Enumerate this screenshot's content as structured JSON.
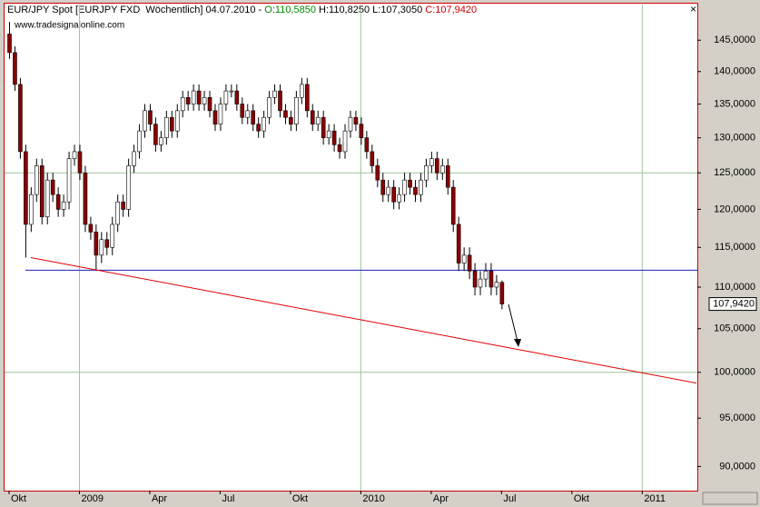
{
  "chart_data": {
    "type": "candlestick",
    "header": {
      "instrument": "EUR/JPY Spot [EURJPY FXD  Wöchentlich] 04.07.2010 - ",
      "open": "O:110,5850",
      "mid": " H:110,8250 L:107,3050 ",
      "close": "C:107,9420"
    },
    "source": "www.tradesignalonline.com",
    "categories": [
      "Okt",
      null,
      null,
      null,
      null,
      null,
      null,
      null,
      null,
      null,
      null,
      null,
      null,
      "2009",
      null,
      null,
      null,
      null,
      null,
      null,
      null,
      null,
      null,
      null,
      null,
      null,
      "Apr",
      null,
      null,
      null,
      null,
      null,
      null,
      null,
      null,
      null,
      null,
      null,
      null,
      "Jul",
      null,
      null,
      null,
      null,
      null,
      null,
      null,
      null,
      null,
      null,
      null,
      null,
      "Okt",
      null,
      null,
      null,
      null,
      null,
      null,
      null,
      null,
      null,
      null,
      null,
      null,
      "2010",
      null,
      null,
      null,
      null,
      null,
      null,
      null,
      null,
      null,
      null,
      null,
      null,
      "Apr",
      null,
      null,
      null,
      null,
      null,
      null,
      null,
      null,
      null,
      null,
      null,
      null,
      "Jul",
      null,
      null,
      null,
      null,
      null,
      null,
      null,
      null,
      null,
      null,
      null,
      null,
      "Okt",
      null,
      null,
      null,
      null,
      null,
      null,
      null,
      null,
      null,
      null,
      null,
      null,
      "2011",
      null,
      null,
      null,
      null,
      null,
      null,
      null,
      null,
      null,
      null
    ],
    "open": [
      146,
      143,
      138,
      128,
      118,
      122,
      126,
      119,
      124,
      122,
      120,
      121,
      127,
      128,
      125,
      118,
      117,
      114,
      116,
      115,
      118,
      121,
      120,
      126,
      128,
      131,
      134,
      132,
      129,
      130,
      133,
      131,
      134,
      136,
      135,
      137,
      135,
      136,
      134,
      132,
      135,
      137,
      137,
      135,
      133,
      134,
      132,
      131,
      133,
      136,
      137,
      134,
      133,
      132,
      136,
      138,
      134,
      132,
      133,
      130,
      131,
      129,
      128,
      131,
      133,
      132,
      130,
      128,
      126,
      124,
      122,
      123,
      121,
      122,
      124,
      123,
      122,
      124,
      126,
      127,
      125,
      126,
      123,
      118,
      113,
      114,
      112,
      110,
      111,
      112,
      110,
      110.585,
      null,
      null,
      null,
      null,
      null,
      null,
      null,
      null,
      null,
      null,
      null,
      null,
      null,
      null,
      null,
      null,
      null,
      null,
      null,
      null,
      null,
      null,
      null,
      null,
      null,
      null,
      null,
      null,
      null,
      null,
      null,
      null,
      null,
      null,
      null,
      null
    ],
    "high": [
      148,
      144,
      139,
      129,
      123,
      127,
      127,
      125,
      125,
      123,
      122,
      128,
      129,
      129,
      126,
      119,
      118,
      117,
      117,
      119,
      122,
      122,
      127,
      129,
      132,
      135,
      135,
      133,
      131,
      134,
      134,
      135,
      137,
      137,
      138,
      138,
      137,
      137,
      135,
      136,
      138,
      138,
      138,
      136,
      135,
      135,
      133,
      134,
      137,
      138,
      138,
      135,
      134,
      137,
      139,
      139,
      135,
      134,
      134,
      132,
      132,
      130,
      132,
      134,
      134,
      133,
      131,
      129,
      127,
      125,
      124,
      124,
      123,
      125,
      125,
      124,
      125,
      127,
      128,
      128,
      127,
      127,
      124,
      119,
      115,
      115,
      113,
      112,
      113,
      113,
      111.5,
      110.825,
      null,
      null,
      null,
      null,
      null,
      null,
      null,
      null,
      null,
      null,
      null,
      null,
      null,
      null,
      null,
      null,
      null,
      null,
      null,
      null,
      null,
      null,
      null,
      null,
      null,
      null,
      null,
      null,
      null,
      null,
      null,
      null,
      null,
      null,
      null,
      null
    ],
    "low": [
      142,
      137,
      127,
      113.7,
      117,
      121,
      118,
      118,
      121,
      119,
      119,
      120,
      126,
      124,
      117,
      116,
      112.1,
      113,
      114,
      114,
      117,
      119,
      119,
      125,
      127,
      130,
      131,
      128,
      128,
      129,
      130,
      130,
      133,
      134,
      134,
      134,
      134,
      133,
      131,
      131,
      134,
      136,
      134,
      132,
      132,
      131,
      130,
      130,
      132,
      135,
      133,
      132,
      131,
      131,
      135,
      133,
      131,
      131,
      129,
      129,
      128,
      127,
      127,
      130,
      131,
      129,
      127,
      125,
      123,
      121,
      121,
      120,
      120,
      121,
      122,
      121,
      121,
      123,
      125,
      124,
      124,
      122,
      117,
      112,
      112,
      111,
      109,
      109,
      110,
      109,
      109,
      107.305,
      null,
      null,
      null,
      null,
      null,
      null,
      null,
      null,
      null,
      null,
      null,
      null,
      null,
      null,
      null,
      null,
      null,
      null,
      null,
      null,
      null,
      null,
      null,
      null,
      null,
      null,
      null,
      null,
      null,
      null,
      null,
      null,
      null,
      null,
      null,
      null
    ],
    "close": [
      143,
      138,
      128,
      118,
      122,
      126,
      119,
      124,
      122,
      120,
      121,
      127,
      128,
      125,
      118,
      117,
      114,
      116,
      115,
      118,
      121,
      120,
      126,
      128,
      131,
      134,
      132,
      129,
      130,
      133,
      131,
      134,
      136,
      135,
      137,
      135,
      136,
      134,
      132,
      135,
      137,
      137,
      135,
      133,
      134,
      132,
      131,
      133,
      136,
      137,
      134,
      133,
      132,
      136,
      138,
      134,
      132,
      133,
      130,
      131,
      129,
      128,
      131,
      133,
      132,
      130,
      128,
      126,
      124,
      122,
      123,
      121,
      122,
      124,
      123,
      122,
      124,
      126,
      127,
      125,
      126,
      123,
      118,
      113,
      114,
      112,
      110,
      111,
      112,
      110,
      110.6,
      107.942,
      null,
      null,
      null,
      null,
      null,
      null,
      null,
      null,
      null,
      null,
      null,
      null,
      null,
      null,
      null,
      null,
      null,
      null,
      null,
      null,
      null,
      null,
      null,
      null,
      null,
      null,
      null,
      null,
      null,
      null,
      null,
      null,
      null,
      null,
      null,
      null
    ],
    "up_color": "#ffffff",
    "down_color": "#8b0000",
    "wick_color": "#000000",
    "ylim": [
      87.6,
      150.9
    ],
    "log_scale": true,
    "yticks": [
      {
        "value": 145,
        "label": "145,0000"
      },
      {
        "value": 140,
        "label": "140,0000"
      },
      {
        "value": 135,
        "label": "135,0000"
      },
      {
        "value": 130,
        "label": "130,0000"
      },
      {
        "value": 125,
        "label": "125,0000"
      },
      {
        "value": 120,
        "label": "120,0000"
      },
      {
        "value": 115,
        "label": "115,0000"
      },
      {
        "value": 110,
        "label": "110,0000"
      },
      {
        "value": 105,
        "label": "105,0000"
      },
      {
        "value": 100,
        "label": "100,0000"
      },
      {
        "value": 95,
        "label": "95,0000"
      },
      {
        "value": 90,
        "label": "90,0000"
      }
    ],
    "grid_color": "#9ec59e",
    "last_price": {
      "value": 107.942,
      "label": "107,9420"
    },
    "hline": {
      "value": 112.1,
      "color": "#2020c0"
    },
    "trendline": {
      "values": [
        113.7,
        98.8
      ],
      "color": "#e00000"
    }
  }
}
